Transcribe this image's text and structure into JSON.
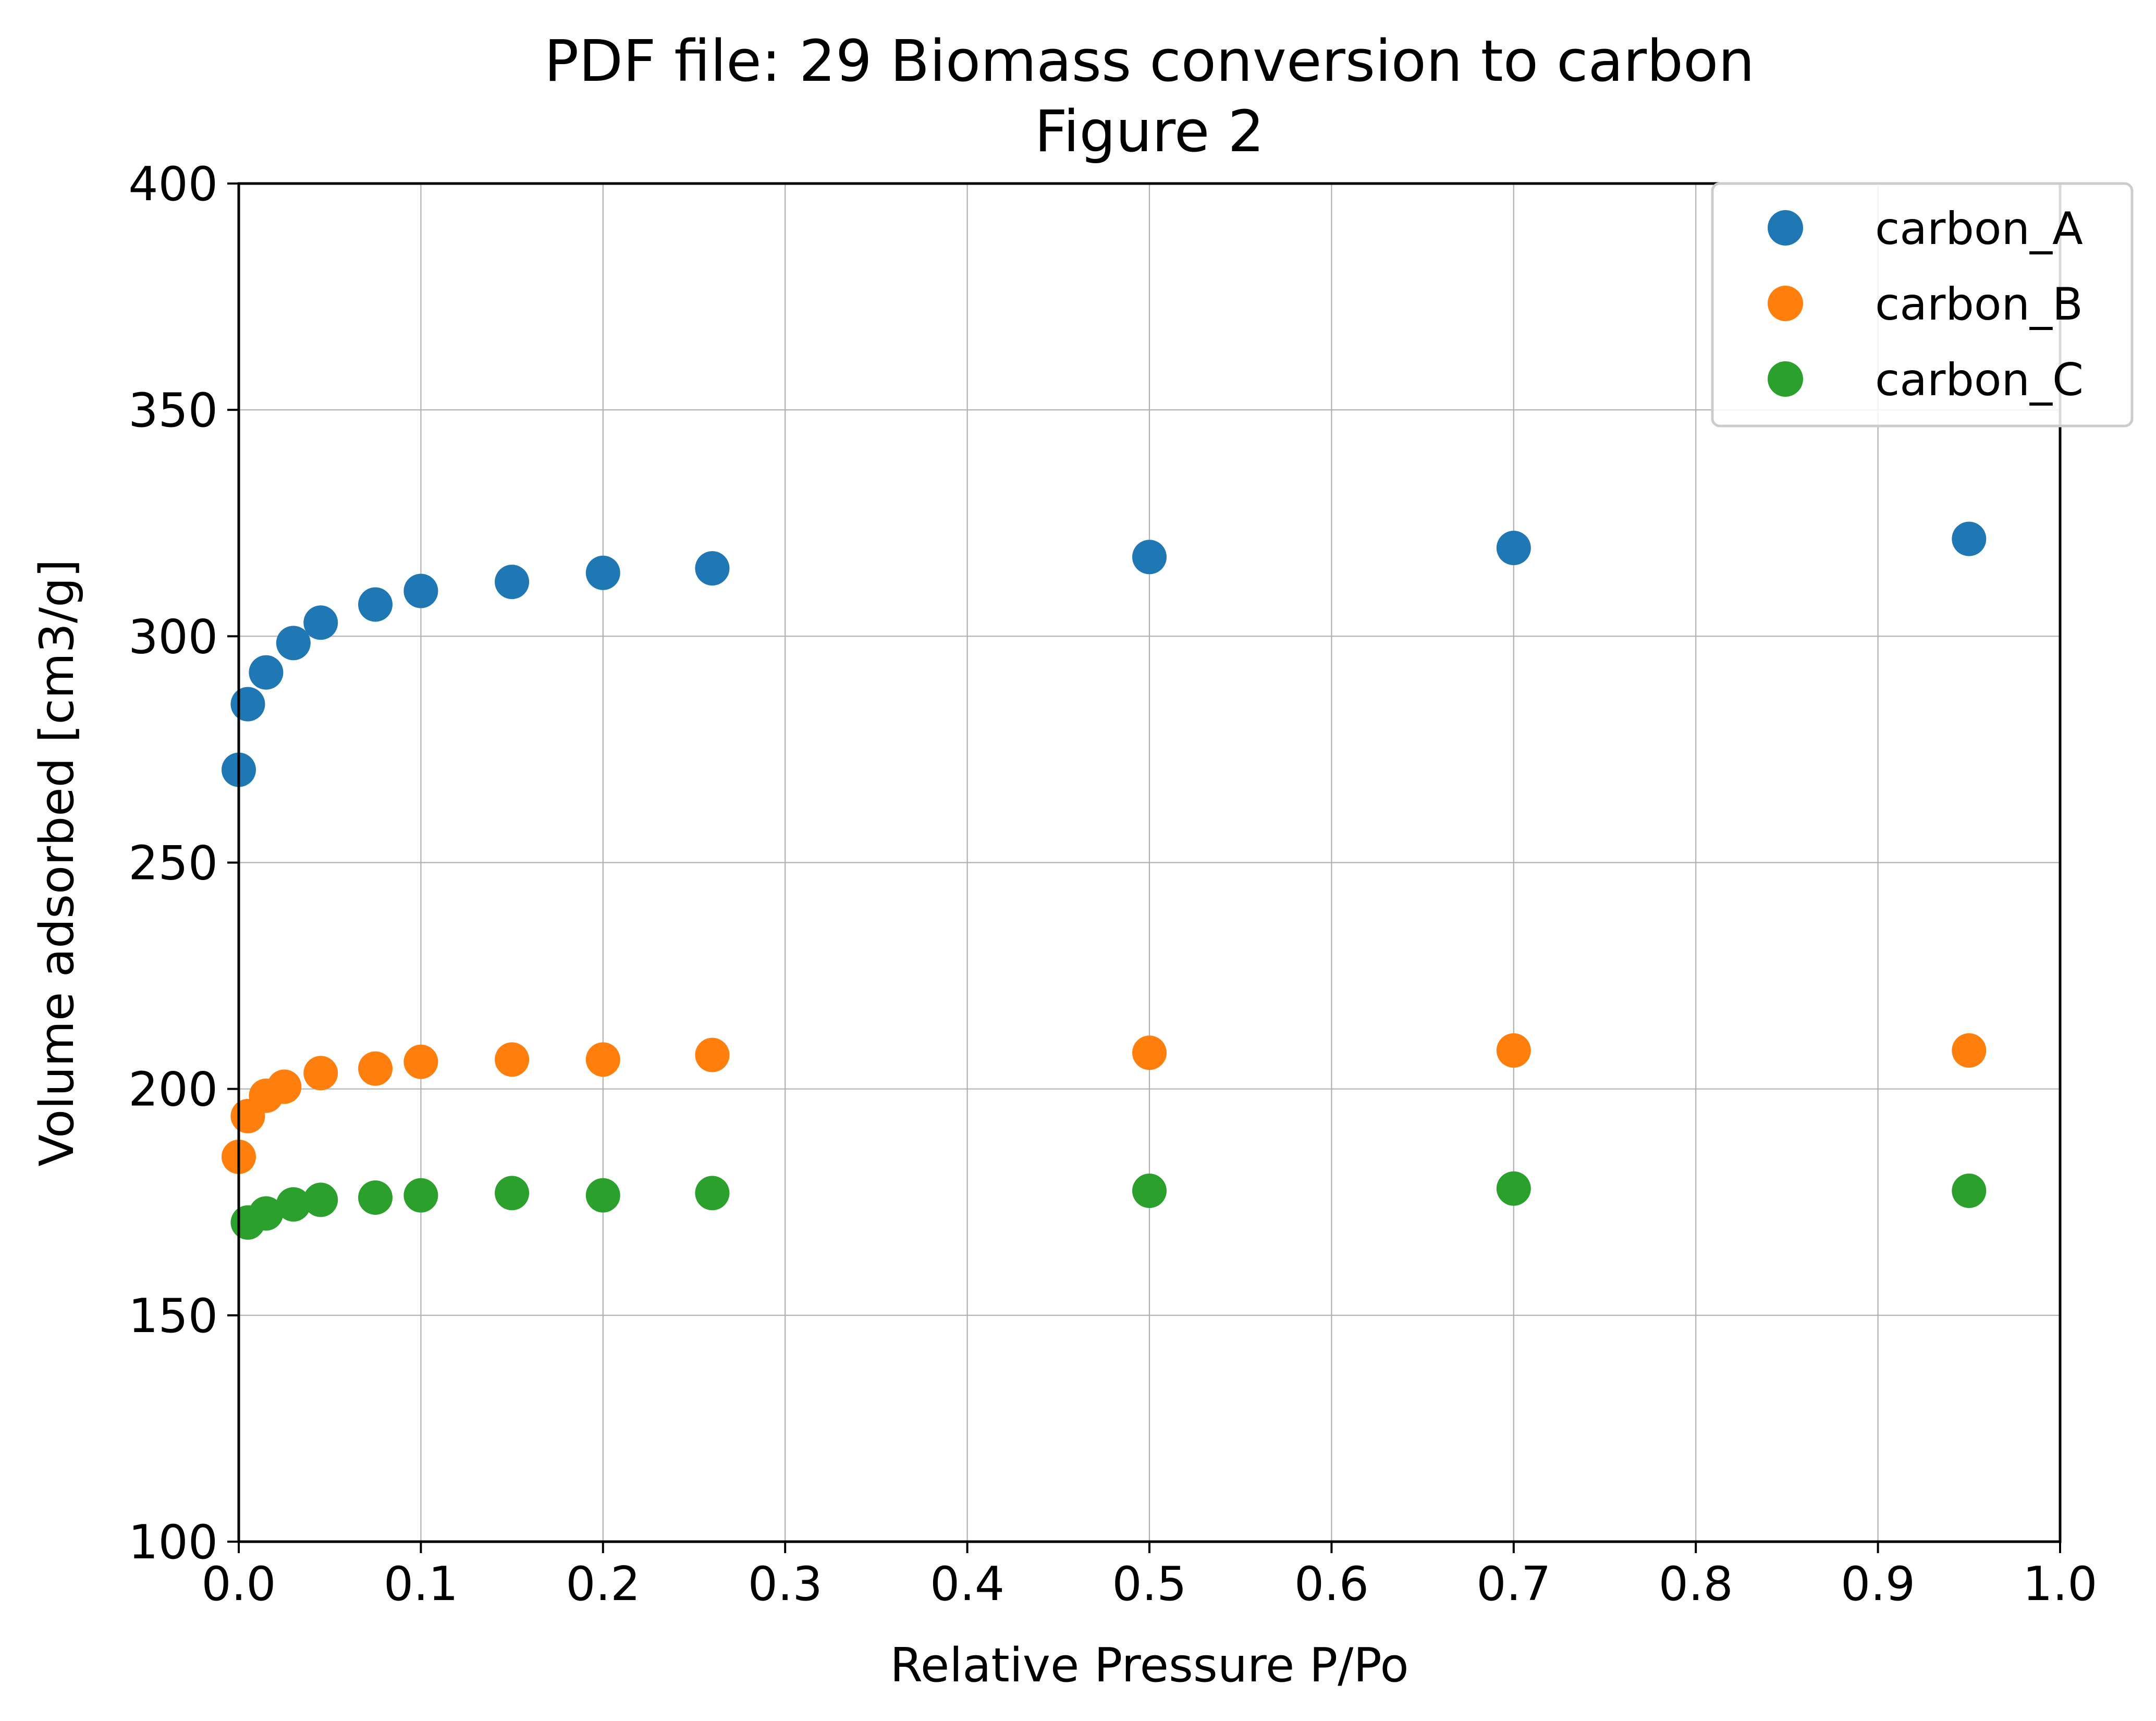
{
  "chart_data": {
    "type": "scatter",
    "title": "PDF file: 29 Biomass conversion to carbon",
    "subtitle": "Figure 2",
    "xlabel": "Relative Pressure P/Po",
    "ylabel": "Volume adsorbed [cm3/g]",
    "xlim": [
      0.0,
      1.0
    ],
    "ylim": [
      100,
      400
    ],
    "xticks": [
      "0.0",
      "0.1",
      "0.2",
      "0.3",
      "0.4",
      "0.5",
      "0.6",
      "0.7",
      "0.8",
      "0.9",
      "1.0"
    ],
    "yticks": [
      "100",
      "150",
      "200",
      "250",
      "300",
      "350",
      "400"
    ],
    "grid": true,
    "legend_position": "top-right",
    "series": [
      {
        "name": "carbon_A",
        "color": "#1f77b4",
        "x": [
          0.0,
          0.005,
          0.015,
          0.03,
          0.045,
          0.075,
          0.1,
          0.15,
          0.2,
          0.26,
          0.5,
          0.7,
          0.95
        ],
        "y": [
          270.5,
          285,
          292,
          298.5,
          303,
          307,
          310,
          312,
          314,
          315,
          317.5,
          319.5,
          321.5
        ]
      },
      {
        "name": "carbon_B",
        "color": "#ff7f0e",
        "x": [
          0.0,
          0.005,
          0.015,
          0.025,
          0.045,
          0.075,
          0.1,
          0.15,
          0.2,
          0.26,
          0.5,
          0.7,
          0.95
        ],
        "y": [
          185,
          194,
          198.5,
          200.5,
          203.5,
          204.5,
          206,
          206.5,
          206.5,
          207.5,
          208,
          208.5,
          208.5
        ]
      },
      {
        "name": "carbon_C",
        "color": "#2ca02c",
        "x": [
          0.005,
          0.015,
          0.03,
          0.045,
          0.075,
          0.1,
          0.15,
          0.2,
          0.26,
          0.5,
          0.7,
          0.95
        ],
        "y": [
          170.5,
          172.5,
          174.5,
          175.5,
          176,
          176.5,
          177,
          176.5,
          177,
          177.5,
          178,
          177.5
        ]
      }
    ]
  }
}
